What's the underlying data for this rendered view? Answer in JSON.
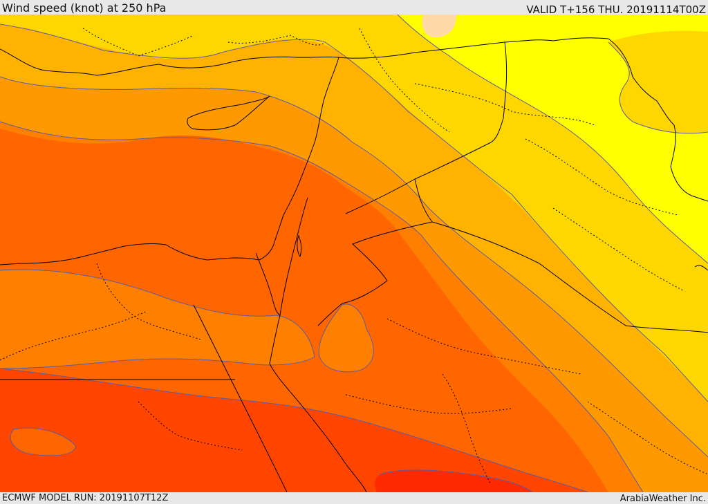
{
  "header": {
    "title": "Wind speed (knot) at 250 hPa",
    "valid_time": "VALID T+156 THU. 20191114T00Z"
  },
  "footer": {
    "model_run": "ECMWF MODEL RUN: 20191107T12Z",
    "credit": "ArabiaWeather Inc."
  },
  "map": {
    "field": "Wind speed at 250 hPa",
    "region": "Eastern Mediterranean, Egypt, Levant, Iraq, northern Saudi Arabia",
    "colors": {
      "band_0": "#ffd9a8",
      "band_1": "#ffff00",
      "band_2": "#ffd700",
      "band_3": "#ffb300",
      "band_4": "#ff9900",
      "band_5": "#ff7f00",
      "band_6": "#ff6600",
      "band_7": "#ff4500",
      "band_8": "#ff2a00",
      "contour_line": "#5b5ba0",
      "border_line": "#000000"
    }
  }
}
